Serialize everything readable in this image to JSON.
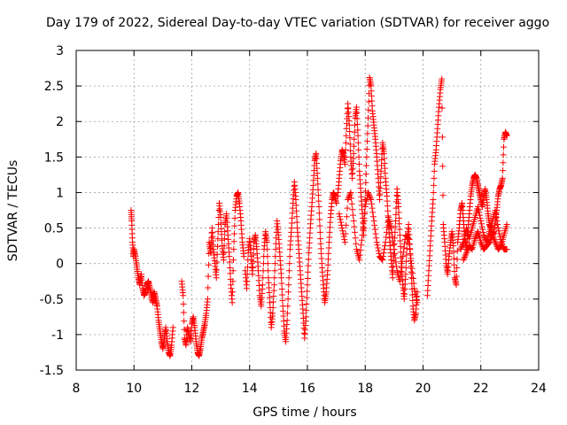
{
  "chart_data": {
    "type": "scatter",
    "title": "Day 179 of 2022, Sidereal Day-to-day VTEC variation (SDTVAR) for receiver aggo",
    "xlabel": "GPS time / hours",
    "ylabel": "SDTVAR / TECUs",
    "xlim": [
      8,
      24
    ],
    "ylim": [
      -1.5,
      3
    ],
    "xticks": [
      "8",
      "10",
      "12",
      "14",
      "16",
      "18",
      "20",
      "22",
      "24"
    ],
    "yticks": [
      "-1.5",
      "-1",
      "-0.5",
      "0",
      "0.5",
      "1",
      "1.5",
      "2",
      "2.5",
      "3"
    ],
    "grid": true,
    "marker": "+",
    "series_color": "#ff0000",
    "series": [
      {
        "name": "SDTVAR",
        "x": [
          9.9,
          9.92,
          9.95,
          9.98,
          10.0,
          10.05,
          10.1,
          10.15,
          10.2,
          10.25,
          10.3,
          10.35,
          10.4,
          10.45,
          10.5,
          10.55,
          10.6,
          10.65,
          10.7,
          10.75,
          10.8,
          10.85,
          10.9,
          10.95,
          11.0,
          11.05,
          11.1,
          11.15,
          11.2,
          11.25,
          11.3,
          11.35
        ],
        "y": [
          0.75,
          0.6,
          0.3,
          0.1,
          0.2,
          0.1,
          -0.05,
          -0.2,
          -0.3,
          -0.15,
          -0.35,
          -0.45,
          -0.4,
          -0.3,
          -0.25,
          -0.35,
          -0.45,
          -0.55,
          -0.4,
          -0.5,
          -0.6,
          -0.8,
          -0.95,
          -1.1,
          -1.2,
          -1.05,
          -0.9,
          -1.1,
          -1.25,
          -1.3,
          -1.15,
          -0.9
        ]
      },
      {
        "name": "SDTVAR",
        "x": [
          11.65,
          11.7,
          11.75,
          11.8,
          11.85,
          11.9,
          11.95,
          12.0,
          12.05,
          12.1,
          12.15,
          12.2,
          12.25,
          12.3,
          12.35,
          12.4,
          12.45,
          12.5,
          12.55,
          12.6,
          12.65,
          12.7,
          12.75,
          12.8,
          12.85,
          12.9,
          12.95,
          13.0,
          13.05,
          13.1,
          13.15,
          13.2,
          13.25,
          13.3,
          13.35,
          13.4,
          13.45,
          13.5,
          13.55,
          13.6,
          13.65,
          13.7,
          13.75,
          13.8
        ],
        "y": [
          -0.25,
          -0.45,
          -1.05,
          -1.15,
          -0.9,
          -1.0,
          -1.1,
          -0.85,
          -0.75,
          -0.9,
          -1.1,
          -1.25,
          -1.3,
          -1.2,
          -1.05,
          -0.95,
          -0.85,
          -0.7,
          -0.5,
          0.3,
          0.15,
          0.5,
          0.2,
          0.0,
          -0.2,
          0.35,
          0.85,
          0.65,
          0.25,
          0.05,
          0.55,
          0.7,
          0.4,
          0.1,
          -0.3,
          -0.55,
          0.2,
          0.75,
          0.95,
          1.0,
          0.85,
          0.6,
          0.3,
          0.1
        ]
      },
      {
        "name": "SDTVAR",
        "x": [
          13.85,
          13.9,
          13.95,
          14.0,
          14.05,
          14.1,
          14.15,
          14.2,
          14.25,
          14.3,
          14.35,
          14.4,
          14.45,
          14.5,
          14.55,
          14.6,
          14.65,
          14.7,
          14.75,
          14.8,
          14.85,
          14.9,
          14.95,
          15.0,
          15.05,
          15.1,
          15.15,
          15.2,
          15.25,
          15.3,
          15.35,
          15.4,
          15.45,
          15.5,
          15.55,
          15.6,
          15.65,
          15.7,
          15.75,
          15.8,
          15.85,
          15.9,
          15.95,
          16.0,
          16.05,
          16.1,
          16.15,
          16.2,
          16.25,
          16.3,
          16.35,
          16.4,
          16.45,
          16.5,
          16.55,
          16.6,
          16.65,
          16.7,
          16.75,
          16.8,
          16.85,
          16.9,
          16.95,
          17.0
        ],
        "y": [
          -0.1,
          -0.35,
          0.15,
          0.35,
          0.1,
          -0.15,
          0.3,
          0.4,
          0.2,
          -0.1,
          -0.45,
          -0.6,
          -0.3,
          0.2,
          0.45,
          0.3,
          -0.2,
          -0.55,
          -0.9,
          -0.7,
          -0.3,
          0.2,
          0.6,
          0.4,
          0.1,
          -0.2,
          -0.6,
          -0.95,
          -1.1,
          -0.8,
          -0.3,
          0.2,
          0.5,
          0.85,
          1.15,
          0.9,
          0.5,
          0.2,
          -0.1,
          -0.4,
          -0.7,
          -1.05,
          -0.75,
          -0.3,
          0.15,
          0.5,
          0.8,
          1.1,
          1.45,
          1.55,
          1.2,
          0.8,
          0.35,
          0.0,
          -0.3,
          -0.55,
          -0.4,
          -0.1,
          0.3,
          0.65,
          0.9,
          1.0,
          0.95,
          0.85
        ]
      },
      {
        "name": "SDTVAR",
        "x": [
          17.05,
          17.1,
          17.15,
          17.2,
          17.25,
          17.3,
          17.35,
          17.4,
          17.45,
          17.5,
          17.55,
          17.6,
          17.65,
          17.7,
          17.75,
          17.8,
          17.85,
          17.9,
          17.95,
          18.0,
          18.05,
          18.1,
          18.15,
          18.2,
          18.25,
          18.3,
          18.35,
          18.4,
          18.45,
          18.5,
          18.55,
          18.6,
          18.65,
          18.7,
          18.75,
          18.8,
          18.85,
          18.9,
          18.95,
          19.0,
          19.05,
          19.1,
          19.15,
          19.2,
          19.25,
          19.3,
          19.35,
          19.4,
          19.45,
          19.5,
          19.55,
          19.6,
          19.65,
          19.7,
          19.75,
          19.8
        ],
        "y": [
          0.95,
          1.2,
          1.45,
          1.6,
          1.55,
          1.4,
          1.9,
          2.25,
          1.95,
          1.5,
          1.2,
          1.55,
          2.05,
          2.2,
          1.8,
          1.3,
          1.0,
          0.7,
          0.4,
          0.9,
          1.5,
          2.05,
          2.62,
          2.5,
          2.15,
          1.95,
          1.75,
          1.5,
          1.2,
          0.9,
          1.3,
          1.7,
          1.55,
          1.2,
          0.95,
          0.6,
          0.3,
          0.05,
          -0.2,
          0.2,
          0.6,
          1.05,
          0.8,
          0.4,
          0.0,
          -0.3,
          -0.5,
          -0.15,
          0.3,
          0.55,
          0.2,
          -0.2,
          -0.6,
          -0.8,
          -0.7,
          -0.4
        ]
      },
      {
        "name": "SDTVAR",
        "x": [
          17.1,
          17.2,
          17.3,
          17.4,
          17.5,
          17.6,
          17.7,
          17.8,
          17.9,
          18.0,
          18.1,
          18.2,
          18.3,
          18.4,
          18.5,
          18.6,
          18.7,
          18.8,
          18.9,
          19.0,
          19.1,
          19.2,
          19.3,
          19.4,
          19.5,
          19.6,
          19.7,
          19.8
        ],
        "y": [
          0.7,
          0.5,
          0.3,
          0.9,
          1.0,
          0.6,
          0.2,
          0.05,
          0.4,
          0.8,
          1.0,
          0.9,
          0.6,
          0.3,
          0.1,
          0.05,
          0.3,
          0.65,
          0.5,
          0.2,
          -0.1,
          -0.25,
          0.1,
          0.4,
          0.35,
          0.0,
          -0.35,
          -0.55
        ]
      },
      {
        "name": "SDTVAR",
        "x": [
          20.15,
          20.2,
          20.25,
          20.3,
          20.35,
          20.4,
          20.45,
          20.5,
          20.55,
          20.6,
          20.65,
          20.7,
          20.75,
          20.8,
          20.85,
          20.9,
          20.95,
          21.0,
          21.05,
          21.1,
          21.15,
          21.2,
          21.25,
          21.3,
          21.35,
          21.4,
          21.45,
          21.5,
          21.55,
          21.6,
          21.65,
          21.7,
          21.75,
          21.8,
          21.85,
          21.9,
          21.95,
          22.0,
          22.05,
          22.1,
          22.15,
          22.2,
          22.25,
          22.3,
          22.35,
          22.4,
          22.45,
          22.5,
          22.55,
          22.6,
          22.65,
          22.7,
          22.75,
          22.8,
          22.85,
          22.9
        ],
        "y": [
          -0.45,
          -0.1,
          0.25,
          0.6,
          0.9,
          1.4,
          1.6,
          1.9,
          2.2,
          2.45,
          2.6,
          0.55,
          0.3,
          0.0,
          -0.15,
          0.1,
          0.3,
          0.45,
          0.25,
          -0.2,
          -0.3,
          0.3,
          0.5,
          0.75,
          0.85,
          0.6,
          0.35,
          0.2,
          0.45,
          0.7,
          0.95,
          1.1,
          1.2,
          1.25,
          1.2,
          1.1,
          1.0,
          0.9,
          0.8,
          0.95,
          1.05,
          0.9,
          0.7,
          0.55,
          0.5,
          0.4,
          0.45,
          0.6,
          0.75,
          0.95,
          1.05,
          1.1,
          1.2,
          1.75,
          1.85,
          1.8
        ]
      },
      {
        "name": "SDTVAR",
        "x": [
          21.3,
          21.4,
          21.5,
          21.6,
          21.7,
          21.8,
          21.9,
          22.0,
          22.1,
          22.2,
          22.3,
          22.4,
          22.5,
          22.6,
          22.7,
          22.8,
          22.9
        ],
        "y": [
          0.2,
          0.3,
          0.5,
          0.35,
          0.5,
          0.65,
          0.8,
          0.6,
          0.4,
          0.3,
          0.45,
          0.6,
          0.75,
          0.5,
          0.3,
          0.2,
          0.2
        ]
      },
      {
        "name": "SDTVAR",
        "x": [
          21.4,
          21.5,
          21.6,
          21.7,
          21.8,
          21.9,
          22.0,
          22.1,
          22.2,
          22.3,
          22.4,
          22.5,
          22.6,
          22.7,
          22.8,
          22.9
        ],
        "y": [
          0.05,
          0.15,
          0.25,
          0.2,
          0.35,
          0.45,
          0.3,
          0.2,
          0.25,
          0.3,
          0.4,
          0.3,
          0.2,
          0.25,
          0.4,
          0.55
        ]
      }
    ]
  }
}
